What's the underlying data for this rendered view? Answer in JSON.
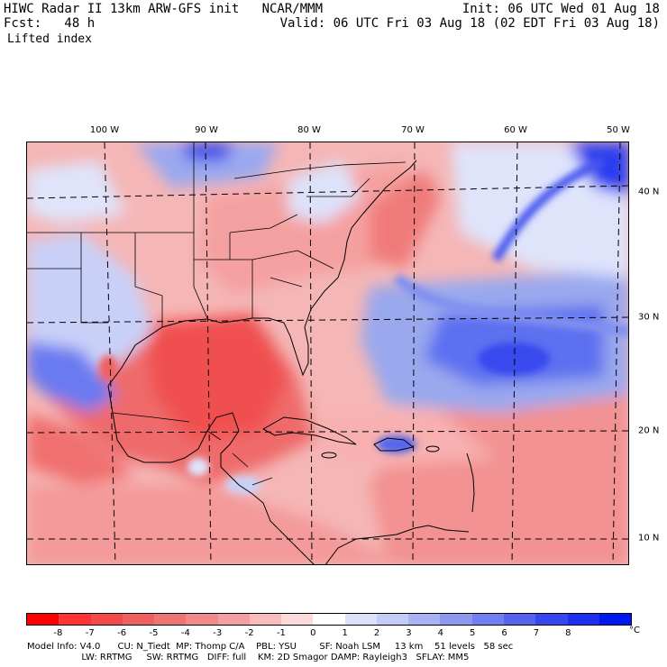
{
  "header": {
    "model_title": "HIWC Radar II 13km ARW-GFS init   NCAR/MMM",
    "init": "Init: 06 UTC Wed 01 Aug 18",
    "fcst_label": "Fcst:   48 h",
    "valid": "Valid: 06 UTC Fri 03 Aug 18 (02 EDT Fri 03 Aug 18)",
    "field": "Lifted index"
  },
  "map": {
    "lon_labels": [
      "100 W",
      "90 W",
      "80 W",
      "70 W",
      "60 W",
      "50 W"
    ],
    "lat_labels": [
      "40 N",
      "30 N",
      "20 N",
      "10 N"
    ]
  },
  "colorbar": {
    "ticks": [
      "-8",
      "-7",
      "-6",
      "-5",
      "-4",
      "-3",
      "-2",
      "-1",
      "0",
      "1",
      "2",
      "3",
      "4",
      "5",
      "6",
      "7",
      "8"
    ],
    "unit": "°C",
    "colors": [
      "#ff0000",
      "#ff3333",
      "#f44a4a",
      "#f06060",
      "#ef7575",
      "#f28a8a",
      "#f5a0a0",
      "#f8bcbc",
      "#fbdada",
      "#ffffff",
      "#dde2fb",
      "#c4cbf7",
      "#a9b3f3",
      "#8d99ef",
      "#727ff0",
      "#5563ef",
      "#3746ee",
      "#1f2ff0",
      "#0018f0"
    ]
  },
  "footer": {
    "line1": "Model Info: V4.0      CU: N_Tiedt  MP: Thomp C/A    PBL: YSU        SF: Noah LSM     13 km    51 levels   58 sec",
    "line2": "                   LW: RRTMG     SW: RRTMG   DIFF: full    KM: 2D Smagor DAMP: Rayleigh3   SFLAY: MM5"
  }
}
